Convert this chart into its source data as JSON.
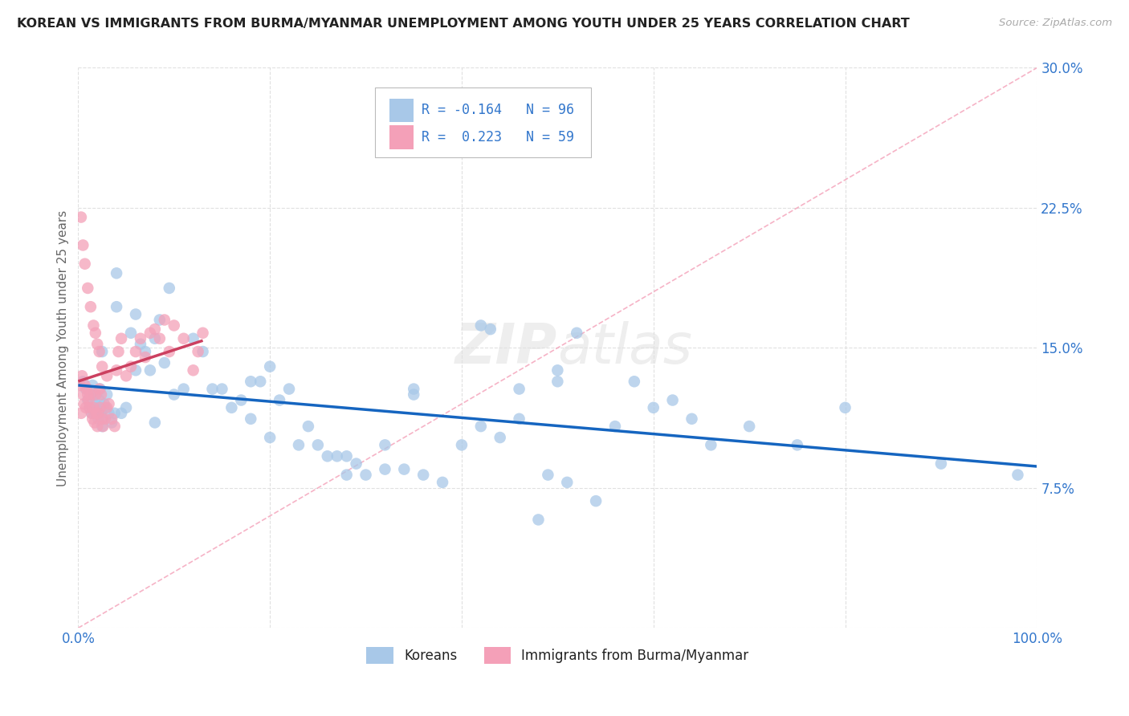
{
  "title": "KOREAN VS IMMIGRANTS FROM BURMA/MYANMAR UNEMPLOYMENT AMONG YOUTH UNDER 25 YEARS CORRELATION CHART",
  "source": "Source: ZipAtlas.com",
  "ylabel": "Unemployment Among Youth under 25 years",
  "xlim": [
    0.0,
    1.0
  ],
  "ylim": [
    0.0,
    0.3
  ],
  "blue_color": "#A8C8E8",
  "pink_color": "#F4A0B8",
  "blue_line_color": "#1565C0",
  "pink_line_color": "#CC4060",
  "diagonal_color": "#F4A0B8",
  "legend_text_color": "#3377CC",
  "title_color": "#222222",
  "grid_color": "#DDDDDD",
  "koreans_R": "-0.164",
  "koreans_N": "96",
  "burma_R": "0.223",
  "burma_N": "59",
  "koreans_x": [
    0.005,
    0.008,
    0.01,
    0.012,
    0.013,
    0.014,
    0.015,
    0.016,
    0.017,
    0.018,
    0.019,
    0.02,
    0.021,
    0.022,
    0.023,
    0.024,
    0.025,
    0.026,
    0.027,
    0.028,
    0.03,
    0.032,
    0.035,
    0.038,
    0.04,
    0.045,
    0.05,
    0.055,
    0.06,
    0.065,
    0.07,
    0.075,
    0.08,
    0.085,
    0.09,
    0.095,
    0.1,
    0.11,
    0.12,
    0.13,
    0.14,
    0.15,
    0.16,
    0.17,
    0.18,
    0.19,
    0.2,
    0.21,
    0.22,
    0.23,
    0.24,
    0.25,
    0.26,
    0.27,
    0.28,
    0.29,
    0.3,
    0.32,
    0.34,
    0.36,
    0.38,
    0.4,
    0.42,
    0.44,
    0.46,
    0.48,
    0.5,
    0.52,
    0.54,
    0.56,
    0.58,
    0.6,
    0.62,
    0.64,
    0.66,
    0.7,
    0.75,
    0.8,
    0.9,
    0.98,
    0.025,
    0.04,
    0.06,
    0.08,
    0.18,
    0.28,
    0.35,
    0.42,
    0.46,
    0.5,
    0.2,
    0.32,
    0.49,
    0.43,
    0.51,
    0.35
  ],
  "koreans_y": [
    0.132,
    0.128,
    0.122,
    0.118,
    0.125,
    0.115,
    0.13,
    0.125,
    0.115,
    0.12,
    0.125,
    0.118,
    0.112,
    0.122,
    0.128,
    0.115,
    0.108,
    0.112,
    0.12,
    0.118,
    0.125,
    0.115,
    0.11,
    0.115,
    0.19,
    0.115,
    0.118,
    0.158,
    0.168,
    0.152,
    0.148,
    0.138,
    0.155,
    0.165,
    0.142,
    0.182,
    0.125,
    0.128,
    0.155,
    0.148,
    0.128,
    0.128,
    0.118,
    0.122,
    0.112,
    0.132,
    0.102,
    0.122,
    0.128,
    0.098,
    0.108,
    0.098,
    0.092,
    0.092,
    0.082,
    0.088,
    0.082,
    0.085,
    0.085,
    0.082,
    0.078,
    0.098,
    0.108,
    0.102,
    0.112,
    0.058,
    0.132,
    0.158,
    0.068,
    0.108,
    0.132,
    0.118,
    0.122,
    0.112,
    0.098,
    0.108,
    0.098,
    0.118,
    0.088,
    0.082,
    0.148,
    0.172,
    0.138,
    0.11,
    0.132,
    0.092,
    0.128,
    0.162,
    0.128,
    0.138,
    0.14,
    0.098,
    0.082,
    0.16,
    0.078,
    0.125
  ],
  "burma_x": [
    0.002,
    0.003,
    0.004,
    0.005,
    0.006,
    0.007,
    0.008,
    0.009,
    0.01,
    0.011,
    0.012,
    0.013,
    0.014,
    0.015,
    0.016,
    0.017,
    0.018,
    0.019,
    0.02,
    0.021,
    0.022,
    0.023,
    0.024,
    0.025,
    0.026,
    0.028,
    0.03,
    0.032,
    0.035,
    0.038,
    0.04,
    0.042,
    0.045,
    0.05,
    0.055,
    0.06,
    0.065,
    0.07,
    0.075,
    0.08,
    0.085,
    0.09,
    0.095,
    0.1,
    0.11,
    0.12,
    0.125,
    0.13,
    0.003,
    0.005,
    0.007,
    0.01,
    0.013,
    0.016,
    0.018,
    0.02,
    0.022,
    0.025,
    0.03
  ],
  "burma_y": [
    0.13,
    0.115,
    0.135,
    0.125,
    0.12,
    0.13,
    0.118,
    0.128,
    0.125,
    0.122,
    0.118,
    0.125,
    0.115,
    0.112,
    0.118,
    0.11,
    0.125,
    0.115,
    0.108,
    0.115,
    0.128,
    0.118,
    0.125,
    0.112,
    0.108,
    0.112,
    0.118,
    0.12,
    0.112,
    0.108,
    0.138,
    0.148,
    0.155,
    0.135,
    0.14,
    0.148,
    0.155,
    0.145,
    0.158,
    0.16,
    0.155,
    0.165,
    0.148,
    0.162,
    0.155,
    0.138,
    0.148,
    0.158,
    0.22,
    0.205,
    0.195,
    0.182,
    0.172,
    0.162,
    0.158,
    0.152,
    0.148,
    0.14,
    0.135
  ]
}
